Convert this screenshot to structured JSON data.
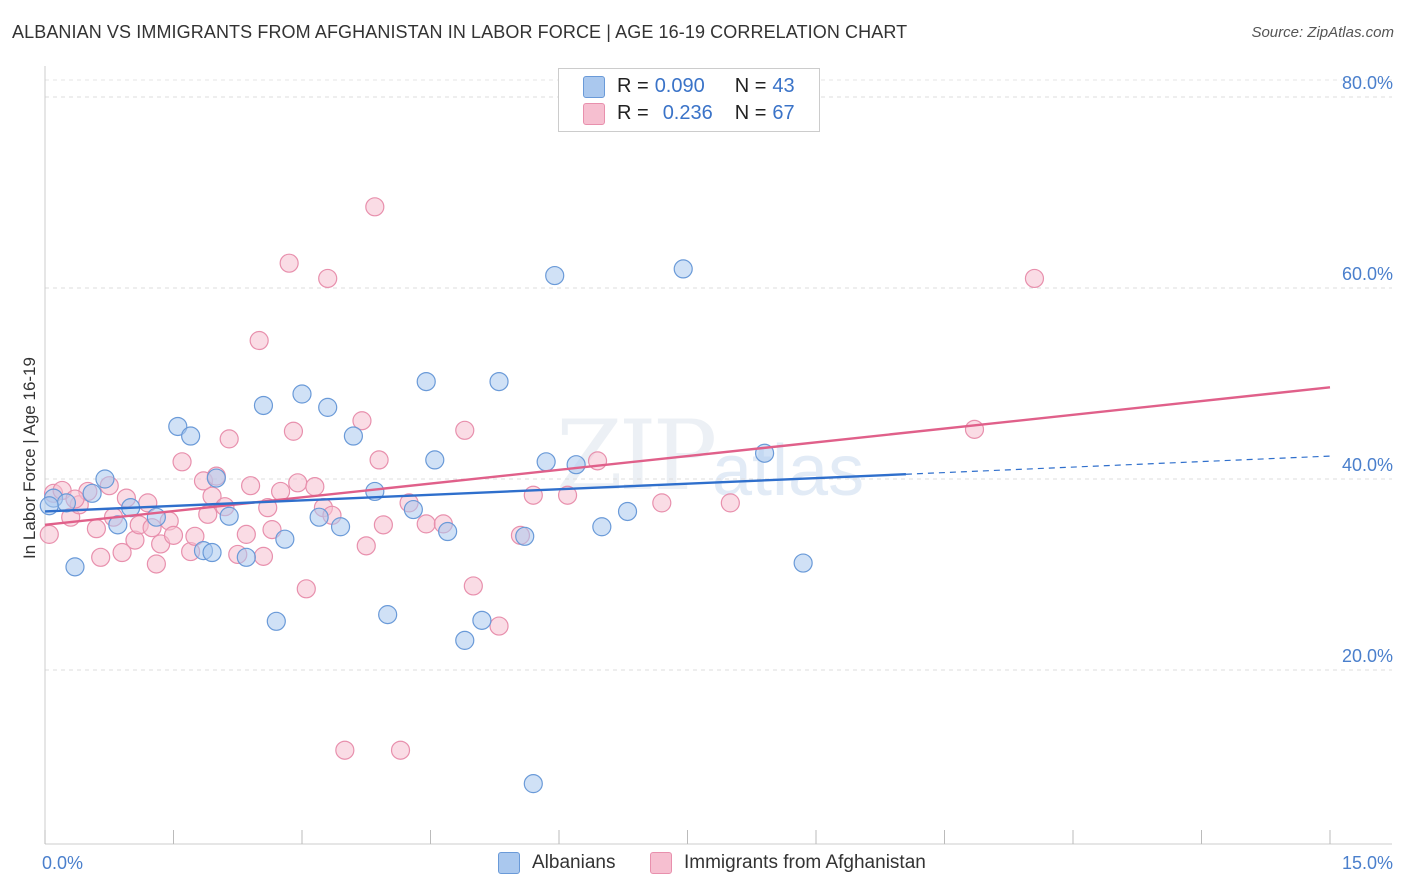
{
  "title": "ALBANIAN VS IMMIGRANTS FROM AFGHANISTAN IN LABOR FORCE | AGE 16-19 CORRELATION CHART",
  "source": "Source: ZipAtlas.com",
  "watermark": {
    "zip": "ZIP",
    "atlas": "atlas"
  },
  "legend_top": {
    "rows": [
      {
        "r_label": "R = ",
        "r_value": "0.090",
        "n_label": "N = ",
        "n_value": "43"
      },
      {
        "r_label": "R = ",
        "r_value": "0.236",
        "n_label": "N = ",
        "n_value": "67"
      }
    ]
  },
  "legend_bottom": {
    "items": [
      "Albanians",
      "Immigrants from Afghanistan"
    ]
  },
  "colors": {
    "albanians_fill": "#aac8ee",
    "albanians_stroke": "#6a9ad8",
    "albanians_line": "#2f6fcc",
    "afghan_fill": "#f6bfd0",
    "afghan_stroke": "#e890ad",
    "afghan_line": "#e0608a",
    "axis_tick_text": "#4a7fcc"
  },
  "chart_data": {
    "type": "scatter",
    "title": "ALBANIAN VS IMMIGRANTS FROM AFGHANISTAN IN LABOR FORCE | AGE 16-19 CORRELATION CHART",
    "xlabel": "",
    "ylabel": "In Labor Force | Age 16-19",
    "xlim": [
      0,
      15
    ],
    "ylim": [
      0,
      80
    ],
    "x_ticks": [
      "0.0%",
      "15.0%"
    ],
    "y_ticks": [
      "20.0%",
      "40.0%",
      "60.0%",
      "80.0%"
    ],
    "y_tick_values": [
      20,
      40,
      60,
      80
    ],
    "grid": true,
    "legend_position": "top-center",
    "series": [
      {
        "name": "Albanians",
        "r": 0.09,
        "n": 43,
        "trend": {
          "x": [
            0,
            10.05
          ],
          "y": [
            36.6,
            40.5
          ],
          "dashed_to": [
            15.0,
            42.4
          ]
        },
        "points": [
          [
            0.1,
            38.0
          ],
          [
            0.25,
            37.5
          ],
          [
            0.35,
            30.8
          ],
          [
            0.55,
            38.5
          ],
          [
            0.7,
            40.0
          ],
          [
            0.85,
            35.2
          ],
          [
            1.0,
            37.0
          ],
          [
            1.3,
            36.0
          ],
          [
            1.55,
            45.5
          ],
          [
            1.7,
            44.5
          ],
          [
            1.85,
            32.5
          ],
          [
            1.95,
            32.3
          ],
          [
            2.0,
            40.1
          ],
          [
            2.15,
            36.1
          ],
          [
            2.35,
            31.8
          ],
          [
            2.55,
            47.7
          ],
          [
            2.7,
            25.1
          ],
          [
            2.8,
            33.7
          ],
          [
            3.0,
            48.9
          ],
          [
            3.2,
            36.0
          ],
          [
            3.3,
            47.5
          ],
          [
            3.45,
            35.0
          ],
          [
            3.6,
            44.5
          ],
          [
            3.85,
            38.7
          ],
          [
            4.0,
            25.8
          ],
          [
            4.3,
            36.8
          ],
          [
            4.45,
            50.2
          ],
          [
            4.55,
            42.0
          ],
          [
            4.7,
            34.5
          ],
          [
            4.9,
            23.1
          ],
          [
            5.1,
            25.2
          ],
          [
            5.3,
            50.2
          ],
          [
            5.6,
            34.0
          ],
          [
            5.7,
            8.1
          ],
          [
            5.85,
            41.8
          ],
          [
            5.95,
            61.3
          ],
          [
            6.2,
            41.5
          ],
          [
            6.5,
            35.0
          ],
          [
            6.8,
            36.6
          ],
          [
            7.45,
            62.0
          ],
          [
            8.4,
            42.7
          ],
          [
            8.85,
            31.2
          ],
          [
            0.05,
            37.2
          ]
        ]
      },
      {
        "name": "Immigrants from Afghanistan",
        "r": 0.236,
        "n": 67,
        "trend": {
          "x": [
            0,
            15.0
          ],
          "y": [
            35.2,
            49.6
          ]
        },
        "points": [
          [
            0.05,
            34.2
          ],
          [
            0.1,
            38.5
          ],
          [
            0.2,
            38.8
          ],
          [
            0.3,
            36.0
          ],
          [
            0.4,
            37.3
          ],
          [
            0.5,
            38.7
          ],
          [
            0.6,
            34.8
          ],
          [
            0.65,
            31.8
          ],
          [
            0.75,
            39.3
          ],
          [
            0.8,
            36.0
          ],
          [
            0.9,
            32.3
          ],
          [
            0.95,
            38.0
          ],
          [
            1.05,
            33.6
          ],
          [
            1.1,
            35.2
          ],
          [
            1.2,
            37.5
          ],
          [
            1.3,
            31.1
          ],
          [
            1.35,
            33.2
          ],
          [
            1.45,
            35.6
          ],
          [
            1.5,
            34.1
          ],
          [
            1.6,
            41.8
          ],
          [
            1.7,
            32.4
          ],
          [
            1.75,
            34.0
          ],
          [
            1.85,
            39.8
          ],
          [
            1.9,
            36.3
          ],
          [
            1.95,
            38.2
          ],
          [
            2.0,
            40.3
          ],
          [
            2.1,
            37.1
          ],
          [
            2.15,
            44.2
          ],
          [
            2.25,
            32.1
          ],
          [
            2.35,
            34.2
          ],
          [
            2.4,
            39.3
          ],
          [
            2.5,
            54.5
          ],
          [
            2.6,
            37.0
          ],
          [
            2.65,
            34.7
          ],
          [
            2.75,
            38.7
          ],
          [
            2.85,
            62.6
          ],
          [
            2.9,
            45.0
          ],
          [
            2.95,
            39.6
          ],
          [
            3.05,
            28.5
          ],
          [
            3.15,
            39.2
          ],
          [
            3.25,
            37.0
          ],
          [
            3.3,
            61.0
          ],
          [
            3.35,
            36.2
          ],
          [
            3.5,
            11.6
          ],
          [
            3.7,
            46.1
          ],
          [
            3.75,
            33.0
          ],
          [
            3.85,
            68.5
          ],
          [
            3.9,
            42.0
          ],
          [
            3.95,
            35.2
          ],
          [
            4.15,
            11.6
          ],
          [
            4.25,
            37.5
          ],
          [
            4.45,
            35.3
          ],
          [
            4.65,
            35.3
          ],
          [
            4.9,
            45.1
          ],
          [
            5.0,
            28.8
          ],
          [
            5.3,
            24.6
          ],
          [
            5.55,
            34.1
          ],
          [
            5.7,
            38.3
          ],
          [
            6.1,
            38.3
          ],
          [
            6.45,
            41.9
          ],
          [
            7.2,
            37.5
          ],
          [
            8.0,
            37.5
          ],
          [
            10.85,
            45.2
          ],
          [
            11.55,
            61.0
          ],
          [
            0.35,
            37.9
          ],
          [
            1.25,
            34.9
          ],
          [
            2.55,
            31.9
          ]
        ]
      }
    ]
  }
}
